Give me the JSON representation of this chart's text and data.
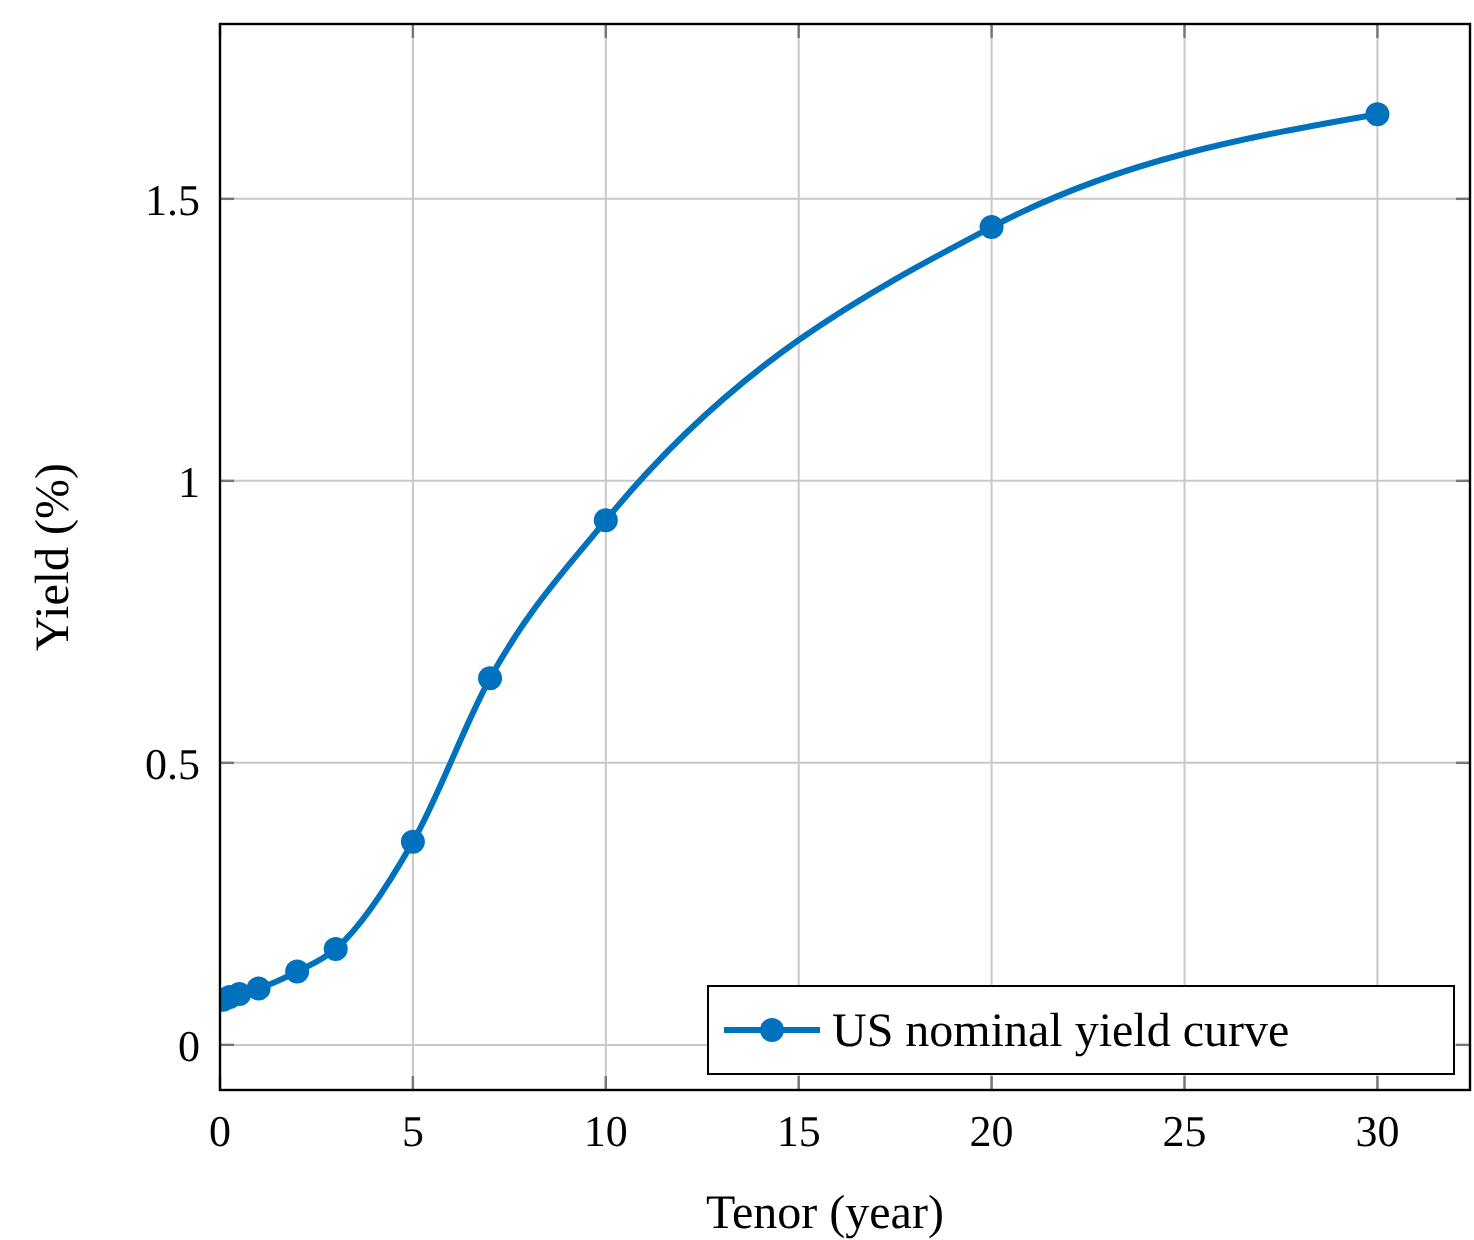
{
  "chart_data": {
    "type": "line",
    "xlabel": "Tenor (year)",
    "ylabel": "Yield (%)",
    "x": [
      0.08,
      0.25,
      0.5,
      1,
      2,
      3,
      5,
      7,
      10,
      20,
      30
    ],
    "series": [
      {
        "name": "US nominal yield curve",
        "color": "#0072bd",
        "values": [
          0.08,
          0.085,
          0.09,
          0.1,
          0.13,
          0.17,
          0.36,
          0.65,
          0.93,
          1.45,
          1.65
        ]
      }
    ],
    "xlim": [
      0,
      32.4
    ],
    "ylim": [
      -0.08,
      1.81
    ],
    "xticks": [
      0,
      5,
      10,
      15,
      20,
      25,
      30
    ],
    "yticks": [
      0,
      {
        "value": 0.5,
        "label": "0.5"
      },
      1,
      {
        "value": 1.5,
        "label": "1.5"
      }
    ],
    "grid": true,
    "legend": "bottom right",
    "marker": "circle",
    "line_style": "solid"
  }
}
